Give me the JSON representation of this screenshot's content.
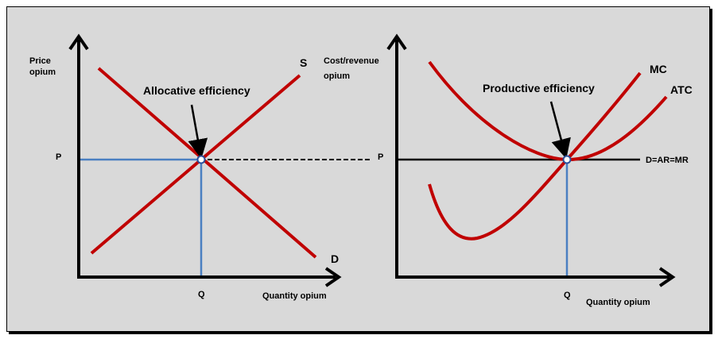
{
  "colors": {
    "curve": "#c00000",
    "guide": "#4a7fc1",
    "axis": "#000000",
    "background": "#d9d9d9"
  },
  "chart_data": [
    {
      "type": "line",
      "ylabel_line1": "Price",
      "ylabel_line2": "opium",
      "xlabel": "Quantity opium",
      "annotation": "Allocative efficiency",
      "price_tick": "P",
      "quantity_tick": "Q",
      "series": [
        {
          "name": "S",
          "label": "S"
        },
        {
          "name": "D",
          "label": "D"
        }
      ]
    },
    {
      "type": "line",
      "ylabel_line1": "Cost/revenue",
      "ylabel_line2": "opium",
      "xlabel": "Quantity opium",
      "annotation": "Productive efficiency",
      "price_tick": "P",
      "quantity_tick": "Q",
      "series": [
        {
          "name": "MC",
          "label": "MC"
        },
        {
          "name": "ATC",
          "label": "ATC"
        },
        {
          "name": "D=AR=MR",
          "label": "D=AR=MR"
        }
      ]
    }
  ]
}
